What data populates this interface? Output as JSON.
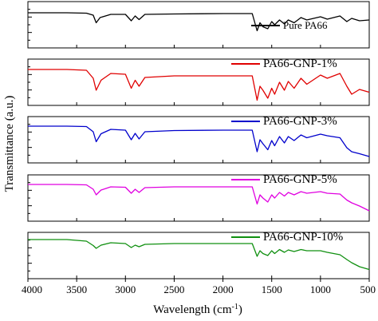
{
  "chart_data": {
    "type": "line",
    "xlabel": "Wavelength (cm",
    "xlabel_sup": "-1",
    "xlabel_tail": ")",
    "ylabel": "Transmittance (a.u.)",
    "xlim": [
      4000,
      500
    ],
    "x_ticks": [
      "4000",
      "3500",
      "3000",
      "2500",
      "2000",
      "1500",
      "1000",
      "500"
    ],
    "x_tick_values": [
      4000,
      3500,
      3000,
      2500,
      2000,
      1500,
      1000,
      500
    ],
    "series": [
      {
        "name": "Pure PA66",
        "color": "#000000",
        "values": [
          [
            4000,
            0.8
          ],
          [
            3600,
            0.8
          ],
          [
            3400,
            0.79
          ],
          [
            3330,
            0.74
          ],
          [
            3300,
            0.55
          ],
          [
            3260,
            0.68
          ],
          [
            3150,
            0.76
          ],
          [
            3000,
            0.76
          ],
          [
            2940,
            0.6
          ],
          [
            2900,
            0.72
          ],
          [
            2860,
            0.63
          ],
          [
            2800,
            0.76
          ],
          [
            2500,
            0.77
          ],
          [
            2000,
            0.78
          ],
          [
            1700,
            0.78
          ],
          [
            1650,
            0.35
          ],
          [
            1620,
            0.55
          ],
          [
            1590,
            0.45
          ],
          [
            1540,
            0.4
          ],
          [
            1500,
            0.58
          ],
          [
            1470,
            0.5
          ],
          [
            1420,
            0.62
          ],
          [
            1370,
            0.52
          ],
          [
            1330,
            0.62
          ],
          [
            1270,
            0.55
          ],
          [
            1200,
            0.68
          ],
          [
            1140,
            0.62
          ],
          [
            1000,
            0.7
          ],
          [
            930,
            0.64
          ],
          [
            800,
            0.72
          ],
          [
            730,
            0.58
          ],
          [
            680,
            0.66
          ],
          [
            600,
            0.6
          ],
          [
            500,
            0.62
          ]
        ]
      },
      {
        "name": "PA66-GNP-1%",
        "color": "#e00000",
        "values": [
          [
            4000,
            0.82
          ],
          [
            3600,
            0.82
          ],
          [
            3400,
            0.8
          ],
          [
            3330,
            0.6
          ],
          [
            3300,
            0.3
          ],
          [
            3250,
            0.55
          ],
          [
            3150,
            0.72
          ],
          [
            3000,
            0.7
          ],
          [
            2940,
            0.35
          ],
          [
            2900,
            0.55
          ],
          [
            2860,
            0.4
          ],
          [
            2800,
            0.62
          ],
          [
            2500,
            0.66
          ],
          [
            2000,
            0.66
          ],
          [
            1700,
            0.66
          ],
          [
            1650,
            0.05
          ],
          [
            1620,
            0.4
          ],
          [
            1590,
            0.3
          ],
          [
            1540,
            0.1
          ],
          [
            1500,
            0.35
          ],
          [
            1470,
            0.2
          ],
          [
            1420,
            0.5
          ],
          [
            1370,
            0.3
          ],
          [
            1330,
            0.52
          ],
          [
            1270,
            0.35
          ],
          [
            1200,
            0.6
          ],
          [
            1140,
            0.45
          ],
          [
            1000,
            0.68
          ],
          [
            930,
            0.6
          ],
          [
            800,
            0.72
          ],
          [
            730,
            0.4
          ],
          [
            680,
            0.2
          ],
          [
            600,
            0.32
          ],
          [
            500,
            0.25
          ]
        ]
      },
      {
        "name": "PA66-GNP-3%",
        "color": "#0000cc",
        "values": [
          [
            4000,
            0.84
          ],
          [
            3600,
            0.84
          ],
          [
            3400,
            0.83
          ],
          [
            3330,
            0.7
          ],
          [
            3300,
            0.45
          ],
          [
            3250,
            0.65
          ],
          [
            3150,
            0.76
          ],
          [
            3000,
            0.74
          ],
          [
            2940,
            0.5
          ],
          [
            2900,
            0.66
          ],
          [
            2860,
            0.52
          ],
          [
            2800,
            0.7
          ],
          [
            2500,
            0.73
          ],
          [
            2000,
            0.74
          ],
          [
            1700,
            0.74
          ],
          [
            1650,
            0.2
          ],
          [
            1620,
            0.5
          ],
          [
            1590,
            0.4
          ],
          [
            1540,
            0.25
          ],
          [
            1500,
            0.48
          ],
          [
            1470,
            0.35
          ],
          [
            1420,
            0.58
          ],
          [
            1370,
            0.42
          ],
          [
            1330,
            0.58
          ],
          [
            1270,
            0.48
          ],
          [
            1200,
            0.62
          ],
          [
            1140,
            0.55
          ],
          [
            1000,
            0.64
          ],
          [
            930,
            0.6
          ],
          [
            800,
            0.55
          ],
          [
            730,
            0.3
          ],
          [
            680,
            0.2
          ],
          [
            600,
            0.15
          ],
          [
            500,
            0.08
          ]
        ]
      },
      {
        "name": "PA66-GNP-5%",
        "color": "#e000e0",
        "values": [
          [
            4000,
            0.84
          ],
          [
            3600,
            0.84
          ],
          [
            3400,
            0.83
          ],
          [
            3330,
            0.72
          ],
          [
            3300,
            0.58
          ],
          [
            3250,
            0.7
          ],
          [
            3150,
            0.78
          ],
          [
            3000,
            0.77
          ],
          [
            2940,
            0.62
          ],
          [
            2900,
            0.72
          ],
          [
            2860,
            0.64
          ],
          [
            2800,
            0.76
          ],
          [
            2500,
            0.78
          ],
          [
            2000,
            0.78
          ],
          [
            1700,
            0.78
          ],
          [
            1650,
            0.35
          ],
          [
            1620,
            0.58
          ],
          [
            1590,
            0.5
          ],
          [
            1540,
            0.4
          ],
          [
            1500,
            0.58
          ],
          [
            1470,
            0.5
          ],
          [
            1420,
            0.64
          ],
          [
            1370,
            0.55
          ],
          [
            1330,
            0.64
          ],
          [
            1270,
            0.58
          ],
          [
            1200,
            0.66
          ],
          [
            1140,
            0.62
          ],
          [
            1000,
            0.66
          ],
          [
            930,
            0.62
          ],
          [
            800,
            0.6
          ],
          [
            730,
            0.45
          ],
          [
            680,
            0.38
          ],
          [
            600,
            0.3
          ],
          [
            500,
            0.18
          ]
        ]
      },
      {
        "name": "PA66-GNP-10%",
        "color": "#109010",
        "values": [
          [
            4000,
            0.9
          ],
          [
            3600,
            0.9
          ],
          [
            3400,
            0.86
          ],
          [
            3330,
            0.75
          ],
          [
            3300,
            0.68
          ],
          [
            3250,
            0.76
          ],
          [
            3150,
            0.82
          ],
          [
            3000,
            0.8
          ],
          [
            2940,
            0.7
          ],
          [
            2900,
            0.76
          ],
          [
            2860,
            0.72
          ],
          [
            2800,
            0.78
          ],
          [
            2500,
            0.8
          ],
          [
            2000,
            0.8
          ],
          [
            1700,
            0.8
          ],
          [
            1650,
            0.48
          ],
          [
            1620,
            0.62
          ],
          [
            1590,
            0.55
          ],
          [
            1540,
            0.5
          ],
          [
            1500,
            0.62
          ],
          [
            1470,
            0.55
          ],
          [
            1420,
            0.65
          ],
          [
            1370,
            0.58
          ],
          [
            1330,
            0.64
          ],
          [
            1270,
            0.6
          ],
          [
            1200,
            0.65
          ],
          [
            1140,
            0.62
          ],
          [
            1000,
            0.62
          ],
          [
            930,
            0.58
          ],
          [
            800,
            0.52
          ],
          [
            730,
            0.4
          ],
          [
            680,
            0.32
          ],
          [
            600,
            0.22
          ],
          [
            500,
            0.15
          ]
        ]
      }
    ],
    "panels": 5,
    "stacked": true,
    "grid": false
  }
}
